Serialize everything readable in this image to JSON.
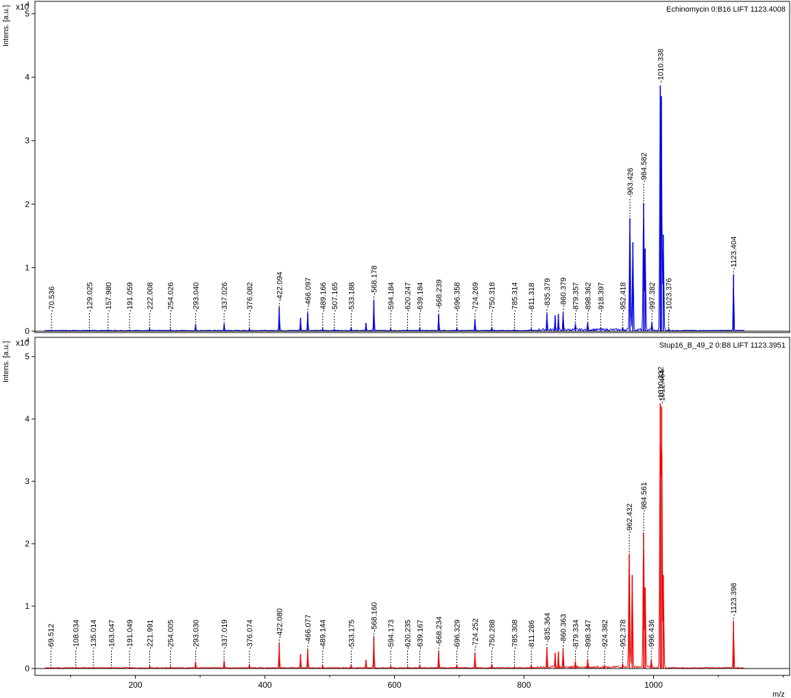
{
  "xlabel": "m/z",
  "x_ticks": [
    200,
    400,
    600,
    800,
    1000
  ],
  "xlim": [
    45,
    1210
  ],
  "chart_data": [
    {
      "type": "line",
      "title": "Echinomycin 0:B16 LIFT 1123.4008",
      "ylabel": "Intens. [a.u.]",
      "y_multiplier": "x10",
      "y_multiplier_exp": "4",
      "ylim": [
        0,
        5.2
      ],
      "y_ticks": [
        0,
        1,
        2,
        3,
        4,
        5
      ],
      "color": "#0000dd",
      "peaks": [
        {
          "x": 70.536,
          "y": 0.02,
          "label": "70.536"
        },
        {
          "x": 129.025,
          "y": 0.02,
          "label": "129.025"
        },
        {
          "x": 157.98,
          "y": 0.02,
          "label": "157.980"
        },
        {
          "x": 191.059,
          "y": 0.02,
          "label": "191.059"
        },
        {
          "x": 222.008,
          "y": 0.04,
          "label": "222.008"
        },
        {
          "x": 254.026,
          "y": 0.03,
          "label": "254.026"
        },
        {
          "x": 293.04,
          "y": 0.11,
          "label": "293.040"
        },
        {
          "x": 337.026,
          "y": 0.12,
          "label": "337.026"
        },
        {
          "x": 376.082,
          "y": 0.04,
          "label": "376.082"
        },
        {
          "x": 422.094,
          "y": 0.38,
          "label": "422.094"
        },
        {
          "x": 455.0,
          "y": 0.21,
          "label": ""
        },
        {
          "x": 466.097,
          "y": 0.29,
          "label": "466.097"
        },
        {
          "x": 489.166,
          "y": 0.04,
          "label": "489.166"
        },
        {
          "x": 507.165,
          "y": 0.03,
          "label": "507.165"
        },
        {
          "x": 533.188,
          "y": 0.06,
          "label": "533.188"
        },
        {
          "x": 556.0,
          "y": 0.13,
          "label": ""
        },
        {
          "x": 568.178,
          "y": 0.48,
          "label": "568.178"
        },
        {
          "x": 594.184,
          "y": 0.04,
          "label": "594.184"
        },
        {
          "x": 620.247,
          "y": 0.03,
          "label": "620.247"
        },
        {
          "x": 639.184,
          "y": 0.05,
          "label": "639.184"
        },
        {
          "x": 668.239,
          "y": 0.26,
          "label": "668.239"
        },
        {
          "x": 696.358,
          "y": 0.05,
          "label": "696.358"
        },
        {
          "x": 724.269,
          "y": 0.19,
          "label": "724.269"
        },
        {
          "x": 750.318,
          "y": 0.06,
          "label": "750.318"
        },
        {
          "x": 785.314,
          "y": 0.03,
          "label": "785.314"
        },
        {
          "x": 811.318,
          "y": 0.04,
          "label": "811.318"
        },
        {
          "x": 835.379,
          "y": 0.28,
          "label": "835.379"
        },
        {
          "x": 848.0,
          "y": 0.25,
          "label": ""
        },
        {
          "x": 853.0,
          "y": 0.27,
          "label": ""
        },
        {
          "x": 860.379,
          "y": 0.29,
          "label": "860.379"
        },
        {
          "x": 879.357,
          "y": 0.12,
          "label": "879.357"
        },
        {
          "x": 898.362,
          "y": 0.14,
          "label": "898.362"
        },
        {
          "x": 918.397,
          "y": 0.05,
          "label": "918.397"
        },
        {
          "x": 952.418,
          "y": 0.06,
          "label": "952.418"
        },
        {
          "x": 963.426,
          "y": 1.78,
          "label": "963.426"
        },
        {
          "x": 968.0,
          "y": 1.4,
          "label": ""
        },
        {
          "x": 984.582,
          "y": 2.02,
          "label": "984.582"
        },
        {
          "x": 987.0,
          "y": 1.3,
          "label": ""
        },
        {
          "x": 997.382,
          "y": 0.14,
          "label": "997.382"
        },
        {
          "x": 1010.338,
          "y": 3.87,
          "label": "1010.338"
        },
        {
          "x": 1012.0,
          "y": 3.7,
          "label": ""
        },
        {
          "x": 1015.0,
          "y": 1.52,
          "label": ""
        },
        {
          "x": 1023.376,
          "y": 0.04,
          "label": "1023.376"
        },
        {
          "x": 1123.404,
          "y": 0.88,
          "label": "1123.404"
        }
      ]
    },
    {
      "type": "line",
      "title": "Stup16_B_49_2 0:B8 LIFT 1123.3951",
      "ylabel": "Intens. [a.u.]",
      "y_multiplier": "x10",
      "y_multiplier_exp": "4",
      "ylim": [
        0,
        5.2
      ],
      "y_ticks": [
        0,
        1,
        2,
        3,
        4,
        5
      ],
      "color": "#ee0000",
      "peaks": [
        {
          "x": 69.512,
          "y": 0.02,
          "label": "69.512"
        },
        {
          "x": 108.034,
          "y": 0.02,
          "label": "108.034"
        },
        {
          "x": 135.014,
          "y": 0.02,
          "label": "135.014"
        },
        {
          "x": 163.047,
          "y": 0.02,
          "label": "163.047"
        },
        {
          "x": 191.049,
          "y": 0.02,
          "label": "191.049"
        },
        {
          "x": 221.991,
          "y": 0.04,
          "label": "221.991"
        },
        {
          "x": 254.005,
          "y": 0.03,
          "label": "254.005"
        },
        {
          "x": 293.03,
          "y": 0.11,
          "label": "293.030"
        },
        {
          "x": 337.019,
          "y": 0.12,
          "label": "337.019"
        },
        {
          "x": 376.074,
          "y": 0.07,
          "label": "376.074"
        },
        {
          "x": 422.08,
          "y": 0.4,
          "label": "422.080"
        },
        {
          "x": 455.0,
          "y": 0.23,
          "label": ""
        },
        {
          "x": 466.077,
          "y": 0.3,
          "label": "466.077"
        },
        {
          "x": 489.144,
          "y": 0.05,
          "label": "489.144"
        },
        {
          "x": 533.175,
          "y": 0.06,
          "label": "533.175"
        },
        {
          "x": 556.0,
          "y": 0.14,
          "label": ""
        },
        {
          "x": 568.16,
          "y": 0.5,
          "label": "568.160"
        },
        {
          "x": 594.173,
          "y": 0.04,
          "label": "594.173"
        },
        {
          "x": 620.235,
          "y": 0.03,
          "label": "620.235"
        },
        {
          "x": 639.167,
          "y": 0.05,
          "label": "639.167"
        },
        {
          "x": 668.234,
          "y": 0.27,
          "label": "668.234"
        },
        {
          "x": 696.329,
          "y": 0.06,
          "label": "696.329"
        },
        {
          "x": 724.252,
          "y": 0.24,
          "label": "724.252"
        },
        {
          "x": 750.288,
          "y": 0.07,
          "label": "750.288"
        },
        {
          "x": 785.308,
          "y": 0.03,
          "label": "785.308"
        },
        {
          "x": 811.286,
          "y": 0.05,
          "label": "811.286"
        },
        {
          "x": 835.364,
          "y": 0.33,
          "label": "835.364"
        },
        {
          "x": 848.0,
          "y": 0.25,
          "label": ""
        },
        {
          "x": 853.0,
          "y": 0.27,
          "label": ""
        },
        {
          "x": 860.363,
          "y": 0.31,
          "label": "860.363"
        },
        {
          "x": 879.334,
          "y": 0.12,
          "label": "879.334"
        },
        {
          "x": 898.347,
          "y": 0.15,
          "label": "898.347"
        },
        {
          "x": 924.382,
          "y": 0.04,
          "label": "924.382"
        },
        {
          "x": 952.378,
          "y": 0.08,
          "label": "952.378"
        },
        {
          "x": 962.432,
          "y": 1.84,
          "label": "962.432"
        },
        {
          "x": 967.0,
          "y": 1.5,
          "label": ""
        },
        {
          "x": 984.561,
          "y": 2.18,
          "label": "984.561"
        },
        {
          "x": 987.0,
          "y": 1.3,
          "label": ""
        },
        {
          "x": 996.436,
          "y": 0.14,
          "label": "996.436"
        },
        {
          "x": 1010.332,
          "y": 4.25,
          "label": "1010.332"
        },
        {
          "x": 1012.464,
          "y": 4.2,
          "label": "1012.464"
        },
        {
          "x": 1015.0,
          "y": 1.5,
          "label": ""
        },
        {
          "x": 1123.398,
          "y": 0.75,
          "label": "1123.398"
        }
      ]
    }
  ]
}
